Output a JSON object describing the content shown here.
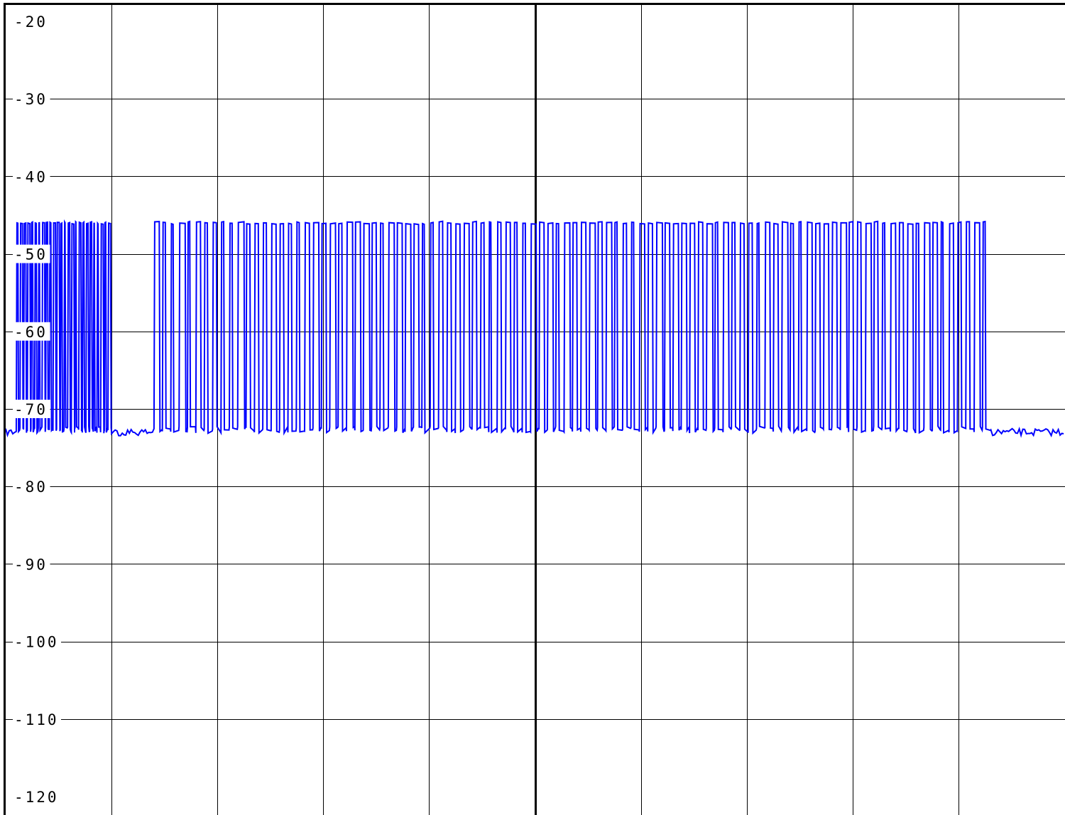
{
  "chart_data": {
    "type": "line",
    "title": "",
    "xlabel": "",
    "ylabel": "",
    "ylim": [
      -120,
      -20
    ],
    "y_ticks": [
      -20,
      -30,
      -40,
      -50,
      -60,
      -70,
      -80,
      -90,
      -100,
      -110,
      -120
    ],
    "y_tick_labels": [
      "-20",
      "-30",
      "-40",
      "-50",
      "-60",
      "-70",
      "-80",
      "-90",
      "-100",
      "-110",
      "-120"
    ],
    "x_grid_divisions": 10,
    "grid": true,
    "legend": "none",
    "series": [
      {
        "color": "#0000ff",
        "signal": "OOK burst train",
        "high_level": -46,
        "low_level": -72.5,
        "noise_floor": -73,
        "segments": [
          {
            "x": [
              0.0,
              0.01
            ],
            "state": "noise"
          },
          {
            "x": [
              0.01,
              0.1
            ],
            "state": "pulses",
            "pulses": 26
          },
          {
            "x": [
              0.1,
              0.14
            ],
            "state": "noise"
          },
          {
            "x": [
              0.14,
              0.93
            ],
            "state": "pulses",
            "pulses": 100
          },
          {
            "x": [
              0.93,
              1.0
            ],
            "state": "noise"
          }
        ]
      }
    ]
  },
  "colors": {
    "trace": "#0000ff",
    "grid": "#000000",
    "background": "#ffffff"
  }
}
